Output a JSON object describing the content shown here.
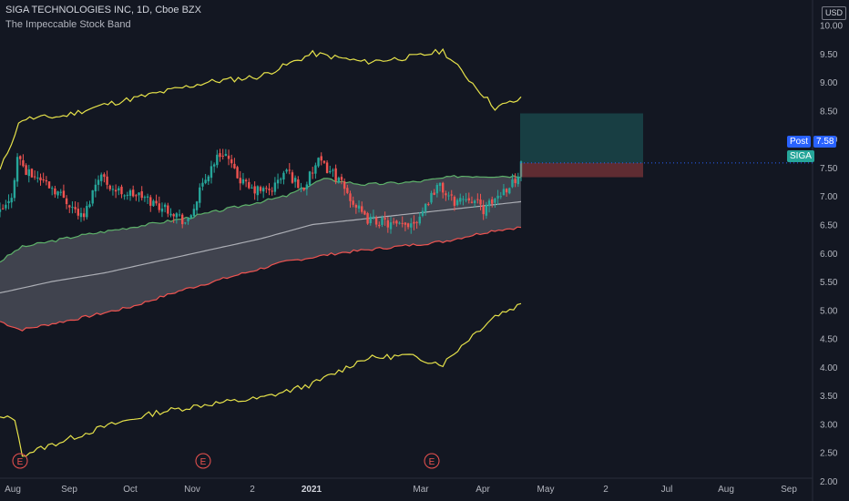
{
  "header": {
    "title": "SIGA TECHNOLOGIES INC, 1D, Cboe BZX",
    "indicator": "The Impeccable Stock Band"
  },
  "currency": "USD",
  "tags": {
    "post_label": "Post",
    "post_value": "7.58",
    "symbol": "SIGA"
  },
  "events": [
    {
      "label": "E",
      "x_label": "Aug"
    },
    {
      "label": "E",
      "x_label": "Nov"
    },
    {
      "label": "E",
      "x_label": "Mar"
    }
  ],
  "colors": {
    "background": "#131722",
    "up": "#26a69a",
    "down": "#ef5350",
    "outer_band": "#e6e24a",
    "inner_upper": "#5eb26a",
    "inner_lower": "#ef5350",
    "inner_fill": "#787b86",
    "midline": "#c7c9cf",
    "post_tag": "#2962ff",
    "symbol_tag": "#26a69a"
  },
  "chart_data": {
    "type": "candlestick",
    "y_ticks": [
      "10.00",
      "9.50",
      "9.00",
      "8.50",
      "8.00",
      "7.50",
      "7.00",
      "6.50",
      "6.00",
      "5.50",
      "5.00",
      "4.50",
      "4.00",
      "3.50",
      "3.00",
      "2.50",
      "2.00"
    ],
    "x_ticks": [
      "Aug",
      "Sep",
      "Oct",
      "Nov",
      "2",
      "2021",
      "Mar",
      "Apr",
      "May",
      "2",
      "Jul",
      "Aug",
      "Sep"
    ],
    "ylim": [
      1.8,
      10.1
    ],
    "last_price": 7.58,
    "series": [
      {
        "name": "Outer Upper",
        "points": [
          [
            0,
            7.45
          ],
          [
            0.04,
            8.35
          ],
          [
            0.12,
            8.4
          ],
          [
            0.2,
            8.6
          ],
          [
            0.3,
            8.8
          ],
          [
            0.4,
            9.0
          ],
          [
            0.5,
            9.1
          ],
          [
            0.6,
            9.5
          ],
          [
            0.7,
            9.35
          ],
          [
            0.8,
            9.45
          ],
          [
            0.85,
            9.55
          ],
          [
            0.9,
            9.05
          ],
          [
            0.95,
            8.55
          ],
          [
            1.0,
            8.7
          ]
        ]
      },
      {
        "name": "Inner Upper",
        "points": [
          [
            0,
            5.85
          ],
          [
            0.04,
            6.1
          ],
          [
            0.15,
            6.3
          ],
          [
            0.25,
            6.45
          ],
          [
            0.35,
            6.6
          ],
          [
            0.45,
            6.8
          ],
          [
            0.55,
            7.0
          ],
          [
            0.62,
            7.3
          ],
          [
            0.7,
            7.2
          ],
          [
            0.8,
            7.25
          ],
          [
            0.88,
            7.35
          ],
          [
            1.0,
            7.35
          ]
        ]
      },
      {
        "name": "Midline",
        "points": [
          [
            0,
            5.3
          ],
          [
            0.1,
            5.5
          ],
          [
            0.2,
            5.65
          ],
          [
            0.3,
            5.85
          ],
          [
            0.4,
            6.05
          ],
          [
            0.5,
            6.25
          ],
          [
            0.6,
            6.5
          ],
          [
            0.7,
            6.6
          ],
          [
            0.8,
            6.7
          ],
          [
            0.9,
            6.8
          ],
          [
            1.0,
            6.9
          ]
        ]
      },
      {
        "name": "Inner Lower",
        "points": [
          [
            0,
            4.8
          ],
          [
            0.04,
            4.65
          ],
          [
            0.15,
            4.85
          ],
          [
            0.25,
            5.05
          ],
          [
            0.35,
            5.35
          ],
          [
            0.45,
            5.6
          ],
          [
            0.55,
            5.85
          ],
          [
            0.65,
            6.0
          ],
          [
            0.75,
            6.1
          ],
          [
            0.85,
            6.2
          ],
          [
            0.95,
            6.4
          ],
          [
            1.0,
            6.45
          ]
        ]
      },
      {
        "name": "Outer Lower",
        "points": [
          [
            0,
            3.1
          ],
          [
            0.03,
            3.1
          ],
          [
            0.04,
            2.45
          ],
          [
            0.12,
            2.7
          ],
          [
            0.2,
            2.95
          ],
          [
            0.3,
            3.2
          ],
          [
            0.4,
            3.35
          ],
          [
            0.5,
            3.45
          ],
          [
            0.6,
            3.7
          ],
          [
            0.7,
            4.15
          ],
          [
            0.78,
            4.2
          ],
          [
            0.85,
            4.05
          ],
          [
            0.9,
            4.5
          ],
          [
            0.95,
            4.9
          ],
          [
            1.0,
            5.1
          ]
        ]
      }
    ],
    "position_box": {
      "entry": 7.58,
      "target": 8.45,
      "stop": 7.33
    }
  }
}
